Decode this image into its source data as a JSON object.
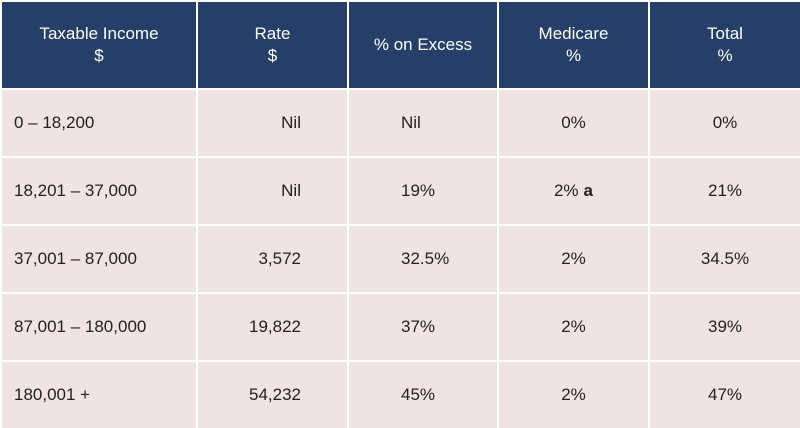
{
  "table": {
    "header": [
      [
        "Taxable Income",
        "$"
      ],
      [
        "Rate",
        "$"
      ],
      [
        "% on Excess"
      ],
      [
        "Medicare",
        "%"
      ],
      [
        "Total",
        "%"
      ]
    ],
    "rows": [
      [
        "0 – 18,200",
        "Nil",
        "Nil",
        "0%",
        "0%"
      ],
      [
        "18,201 – 37,000",
        "Nil",
        "19%",
        {
          "text": "2%",
          "note": "a"
        },
        "21%"
      ],
      [
        "37,001 – 87,000",
        "3,572",
        "32.5%",
        "2%",
        "34.5%"
      ],
      [
        "87,001 – 180,000",
        "19,822",
        "37%",
        "2%",
        "39%"
      ],
      [
        "180,001 +",
        "54,232",
        "45%",
        "2%",
        "47%"
      ]
    ]
  }
}
